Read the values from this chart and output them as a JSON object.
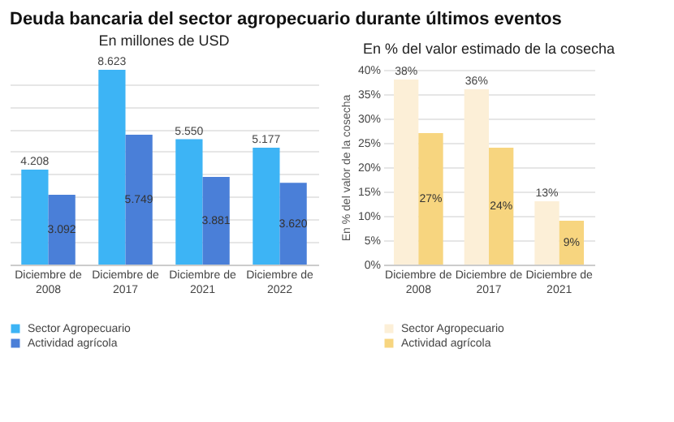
{
  "chart_data": [
    {
      "type": "bar",
      "title": "Deuda bancaria del sector agropecuario durante últimos eventos",
      "subtitle": "En millones de USD",
      "categories": [
        "Diciembre de 2008",
        "Diciembre de 2017",
        "Diciembre de 2021",
        "Diciembre de 2022"
      ],
      "series": [
        {
          "name": "Sector Agropecuario",
          "color": "#3db4f5",
          "values": [
            4208,
            8623,
            5550,
            5177
          ],
          "value_labels": [
            "4.208",
            "8.623",
            "5.550",
            "5.177"
          ]
        },
        {
          "name": "Actividad agrícola",
          "color": "#4a7fd8",
          "values": [
            3092,
            5749,
            3881,
            3620
          ],
          "value_labels": [
            "3.092",
            "5.749",
            "3.881",
            "3.620"
          ]
        }
      ],
      "tick_labels": "x",
      "grid": "y",
      "legend": "bottom"
    },
    {
      "type": "bar",
      "subtitle": "En % del valor estimado de la cosecha",
      "ylabel": "En % del valor de la cosecha",
      "categories": [
        "Diciembre de 2008",
        "Diciembre de 2017",
        "Diciembre de 2021"
      ],
      "series": [
        {
          "name": "Sector Agropecuario",
          "color": "#fcefd7",
          "values": [
            38,
            36,
            13
          ],
          "value_labels": [
            "38%",
            "36%",
            "13%"
          ]
        },
        {
          "name": "Actividad agrícola",
          "color": "#f7d57f",
          "values": [
            27,
            24,
            9
          ],
          "value_labels": [
            "27%",
            "24%",
            "9%"
          ]
        }
      ],
      "ylim": [
        0,
        40
      ],
      "yticks": [
        {
          "value": 0,
          "label": "0%"
        },
        {
          "value": 5,
          "label": "5%"
        },
        {
          "value": 10,
          "label": "10%"
        },
        {
          "value": 15,
          "label": "15%"
        },
        {
          "value": 20,
          "label": "20%"
        },
        {
          "value": 25,
          "label": "25%"
        },
        {
          "value": 30,
          "label": "30%"
        },
        {
          "value": 35,
          "label": "35%"
        },
        {
          "value": 40,
          "label": "40%"
        }
      ],
      "grid": "y",
      "legend": "bottom"
    }
  ]
}
